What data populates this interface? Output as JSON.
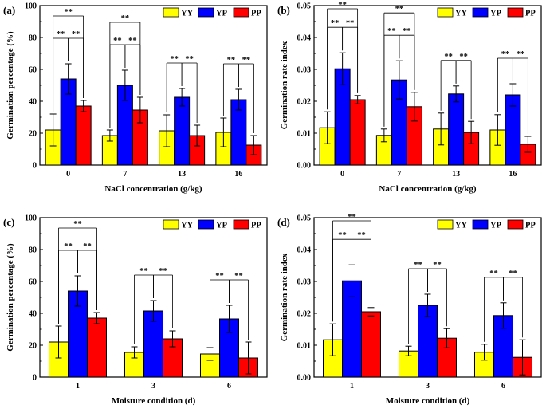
{
  "colors": {
    "YY": "#ffff00",
    "YP": "#0000ff",
    "PP": "#ff0000"
  },
  "chart_data": [
    {
      "type": "bar",
      "panel": "(a)",
      "xlabel": "NaCl concentration (g/kg)",
      "ylabel": "Germination percentage (%)",
      "ylim": [
        0,
        100
      ],
      "yticks": [
        "0",
        "20",
        "40",
        "60",
        "80",
        "100"
      ],
      "categories": [
        "0",
        "7",
        "13",
        "16"
      ],
      "legend_position": "top-right",
      "series": [
        {
          "name": "YY",
          "values": [
            22,
            18.5,
            21.5,
            20.5
          ],
          "errors": [
            10,
            3.5,
            10,
            9
          ]
        },
        {
          "name": "YP",
          "values": [
            54,
            50,
            42.5,
            41
          ],
          "errors": [
            9.5,
            9.5,
            5.5,
            6.5
          ]
        },
        {
          "name": "PP",
          "values": [
            37,
            34.5,
            18.5,
            12.5
          ],
          "errors": [
            3.5,
            8,
            6.5,
            6
          ]
        }
      ],
      "significance": [
        {
          "group": 0,
          "pairs": [
            [
              0,
              1
            ],
            [
              1,
              2
            ],
            [
              0,
              2
            ]
          ],
          "label": "**"
        },
        {
          "group": 1,
          "pairs": [
            [
              0,
              1
            ],
            [
              1,
              2
            ],
            [
              0,
              2
            ]
          ],
          "label": "**"
        },
        {
          "group": 2,
          "pairs": [
            [
              0,
              1
            ],
            [
              1,
              2
            ]
          ],
          "label": "**"
        },
        {
          "group": 3,
          "pairs": [
            [
              0,
              1
            ],
            [
              1,
              2
            ]
          ],
          "label": "**"
        }
      ]
    },
    {
      "type": "bar",
      "panel": "(b)",
      "xlabel": "NaCl concentration (g/kg)",
      "ylabel": "Germination rate index",
      "ylim": [
        0,
        0.05
      ],
      "yticks": [
        "0.00",
        "0.01",
        "0.02",
        "0.03",
        "0.04",
        "0.05"
      ],
      "categories": [
        "0",
        "7",
        "13",
        "16"
      ],
      "legend_position": "top-right",
      "series": [
        {
          "name": "YY",
          "values": [
            0.0117,
            0.0093,
            0.0113,
            0.011
          ],
          "errors": [
            0.005,
            0.002,
            0.005,
            0.0048
          ]
        },
        {
          "name": "YP",
          "values": [
            0.0302,
            0.0267,
            0.0223,
            0.022
          ],
          "errors": [
            0.005,
            0.006,
            0.0025,
            0.0035
          ]
        },
        {
          "name": "PP",
          "values": [
            0.0205,
            0.0183,
            0.0102,
            0.0065
          ],
          "errors": [
            0.0013,
            0.0045,
            0.0035,
            0.0025
          ]
        }
      ],
      "significance": [
        {
          "group": 0,
          "pairs": [
            [
              0,
              1
            ],
            [
              1,
              2
            ],
            [
              0,
              2
            ]
          ],
          "label": "**"
        },
        {
          "group": 1,
          "pairs": [
            [
              0,
              1
            ],
            [
              1,
              2
            ],
            [
              0,
              2
            ]
          ],
          "label": "**"
        },
        {
          "group": 2,
          "pairs": [
            [
              0,
              1
            ],
            [
              1,
              2
            ]
          ],
          "label": "**"
        },
        {
          "group": 3,
          "pairs": [
            [
              0,
              1
            ],
            [
              1,
              2
            ]
          ],
          "label": "**"
        }
      ]
    },
    {
      "type": "bar",
      "panel": "(c)",
      "xlabel": "Moisture condition (d)",
      "ylabel": "Germination percentage (%)",
      "ylim": [
        0,
        100
      ],
      "yticks": [
        "0",
        "20",
        "40",
        "60",
        "80",
        "100"
      ],
      "categories": [
        "1",
        "3",
        "6"
      ],
      "legend_position": "top-right",
      "series": [
        {
          "name": "YY",
          "values": [
            22,
            15.5,
            14.5
          ],
          "errors": [
            10,
            3.5,
            4
          ]
        },
        {
          "name": "YP",
          "values": [
            54,
            41.5,
            36.5
          ],
          "errors": [
            9.5,
            6.5,
            8.5
          ]
        },
        {
          "name": "PP",
          "values": [
            37,
            24,
            12
          ],
          "errors": [
            3.5,
            5,
            10
          ]
        }
      ],
      "significance": [
        {
          "group": 0,
          "pairs": [
            [
              0,
              1
            ],
            [
              1,
              2
            ],
            [
              0,
              2
            ]
          ],
          "label": "**"
        },
        {
          "group": 1,
          "pairs": [
            [
              0,
              1
            ],
            [
              1,
              2
            ]
          ],
          "label": "**"
        },
        {
          "group": 2,
          "pairs": [
            [
              0,
              1
            ],
            [
              1,
              2
            ]
          ],
          "label": "**"
        }
      ]
    },
    {
      "type": "bar",
      "panel": "(d)",
      "xlabel": "Moisture condition (d)",
      "ylabel": "Germination rate index",
      "ylim": [
        0,
        0.05
      ],
      "yticks": [
        "0.00",
        "0.01",
        "0.02",
        "0.03",
        "0.04",
        "0.05"
      ],
      "categories": [
        "1",
        "3",
        "6"
      ],
      "legend_position": "top-right",
      "series": [
        {
          "name": "YY",
          "values": [
            0.0117,
            0.0082,
            0.0078
          ],
          "errors": [
            0.005,
            0.0015,
            0.0025
          ]
        },
        {
          "name": "YP",
          "values": [
            0.0302,
            0.0225,
            0.0193
          ],
          "errors": [
            0.005,
            0.0035,
            0.004
          ]
        },
        {
          "name": "PP",
          "values": [
            0.0205,
            0.0122,
            0.0062
          ],
          "errors": [
            0.0013,
            0.003,
            0.0055
          ]
        }
      ],
      "significance": [
        {
          "group": 0,
          "pairs": [
            [
              0,
              1
            ],
            [
              1,
              2
            ],
            [
              0,
              2
            ]
          ],
          "label": "**"
        },
        {
          "group": 1,
          "pairs": [
            [
              0,
              1
            ],
            [
              1,
              2
            ]
          ],
          "label": "**"
        },
        {
          "group": 2,
          "pairs": [
            [
              0,
              1
            ],
            [
              1,
              2
            ]
          ],
          "label": "**"
        }
      ]
    }
  ]
}
